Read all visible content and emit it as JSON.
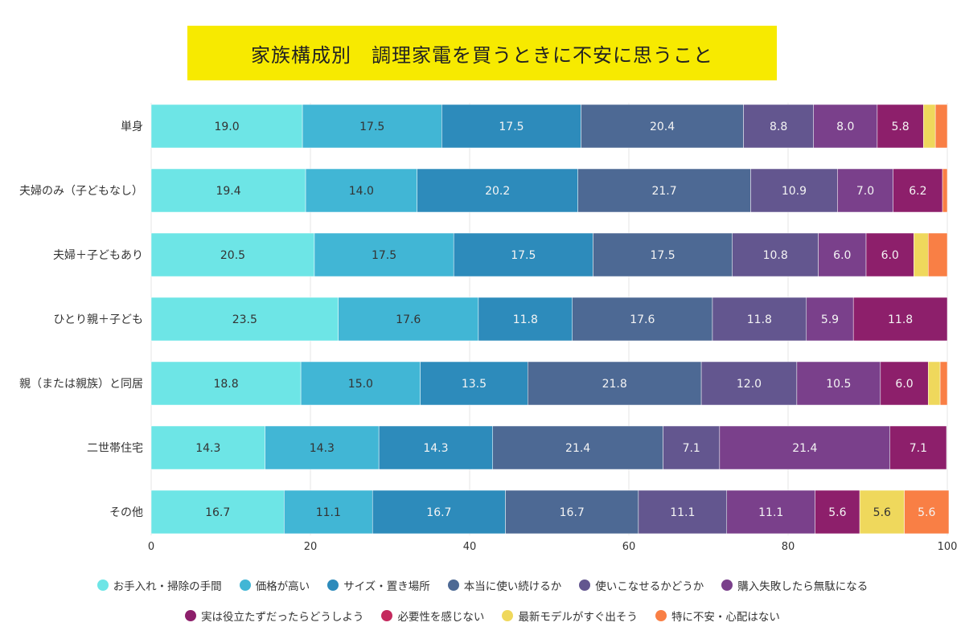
{
  "chart_data": {
    "type": "bar",
    "orientation": "horizontal",
    "stacked": true,
    "title": "家族構成別　調理家電を買うときに不安に思うこと",
    "categories": [
      "単身",
      "夫婦のみ（子どもなし）",
      "夫婦＋子どもあり",
      "ひとり親＋子ども",
      "親（または親族）と同居",
      "二世帯住宅",
      "その他"
    ],
    "xlim": [
      0,
      100
    ],
    "xticks": [
      "0",
      "20",
      "40",
      "60",
      "80",
      "100"
    ],
    "grid": true,
    "legend_position": "bottom",
    "series": [
      {
        "name": "お手入れ・掃除の手間",
        "color": "#6de5e6",
        "values": [
          19.0,
          19.4,
          20.5,
          23.5,
          18.8,
          14.3,
          16.7
        ]
      },
      {
        "name": "価格が高い",
        "color": "#41b6d5",
        "values": [
          17.5,
          14.0,
          17.5,
          17.6,
          15.0,
          14.3,
          11.1
        ]
      },
      {
        "name": "サイズ・置き場所",
        "color": "#2d8bbb",
        "values": [
          17.5,
          20.2,
          17.5,
          11.8,
          13.5,
          14.3,
          16.7
        ]
      },
      {
        "name": "本当に使い続けるか",
        "color": "#4d6994",
        "values": [
          20.4,
          21.7,
          17.5,
          17.6,
          21.8,
          21.4,
          16.7
        ]
      },
      {
        "name": "使いこなせるかどうか",
        "color": "#63568f",
        "values": [
          8.8,
          10.9,
          10.8,
          11.8,
          12.0,
          7.1,
          11.1
        ]
      },
      {
        "name": "購入失敗したら無駄になる",
        "color": "#7a408b",
        "values": [
          8.0,
          7.0,
          6.0,
          5.9,
          10.5,
          21.4,
          11.1
        ]
      },
      {
        "name": "実は役立たずだったらどうしよう",
        "color": "#8d1f6b",
        "values": [
          5.8,
          6.2,
          6.0,
          11.8,
          6.0,
          7.1,
          5.6
        ]
      },
      {
        "name": "必要性を感じない",
        "color": "#c42a5e",
        "values": [
          0,
          0,
          0,
          0,
          0,
          0,
          0
        ]
      },
      {
        "name": "最新モデルがすぐ出そう",
        "color": "#efd85c",
        "values": [
          1.5,
          0,
          1.8,
          0,
          1.5,
          0,
          5.6
        ]
      },
      {
        "name": "特に不安・心配はない",
        "color": "#f97f45",
        "values": [
          1.5,
          0.6,
          2.4,
          0,
          0.9,
          0,
          5.6
        ]
      }
    ]
  }
}
